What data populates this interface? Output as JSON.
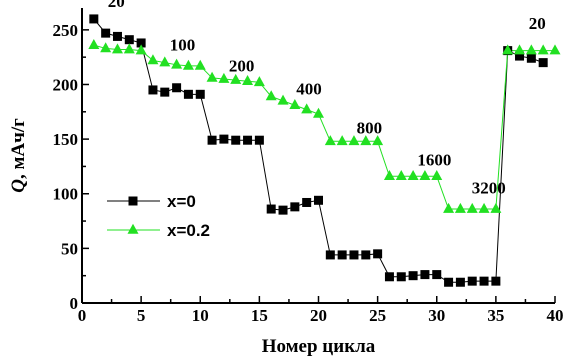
{
  "chart_data": {
    "type": "scatter",
    "xlabel": "Номер цикла",
    "ylabel_symbol": "Q",
    "ylabel_rest": ", мАч/г",
    "xlim": [
      0,
      40
    ],
    "ylim": [
      0,
      270
    ],
    "x_ticks": [
      0,
      5,
      10,
      15,
      20,
      25,
      30,
      35,
      40
    ],
    "y_ticks": [
      0,
      50,
      100,
      150,
      200,
      250
    ],
    "grid": false,
    "legend_position": "middle-left",
    "series": [
      {
        "name": "x=0",
        "marker": "square",
        "color": "#000000",
        "x": [
          1,
          2,
          3,
          4,
          5,
          6,
          7,
          8,
          9,
          10,
          11,
          12,
          13,
          14,
          15,
          16,
          17,
          18,
          19,
          20,
          21,
          22,
          23,
          24,
          25,
          26,
          27,
          28,
          29,
          30,
          31,
          32,
          33,
          34,
          35,
          36,
          37,
          38,
          39
        ],
        "y": [
          260,
          247,
          244,
          241,
          238,
          195,
          193,
          197,
          191,
          191,
          149,
          150,
          149,
          149,
          149,
          86,
          85,
          88,
          92,
          94,
          44,
          44,
          44,
          44,
          45,
          24,
          24,
          25,
          26,
          26,
          19,
          19,
          20,
          20,
          20,
          231,
          226,
          224,
          220
        ]
      },
      {
        "name": "x=0.2",
        "marker": "triangle",
        "color": "#22e022",
        "x": [
          1,
          2,
          3,
          4,
          5,
          6,
          7,
          8,
          9,
          10,
          11,
          12,
          13,
          14,
          15,
          16,
          17,
          18,
          19,
          20,
          21,
          22,
          23,
          24,
          25,
          26,
          27,
          28,
          29,
          30,
          31,
          32,
          33,
          34,
          35,
          36,
          37,
          38,
          39,
          40
        ],
        "y": [
          236,
          233,
          232,
          232,
          231,
          222,
          220,
          218,
          217,
          217,
          206,
          205,
          204,
          203,
          202,
          189,
          185,
          181,
          177,
          173,
          148,
          148,
          148,
          148,
          148,
          116,
          116,
          116,
          116,
          116,
          86,
          86,
          86,
          86,
          86,
          231,
          231,
          231,
          231,
          231
        ]
      }
    ],
    "annotations": [
      {
        "text": "20",
        "x": 2.9,
        "y": 271
      },
      {
        "text": "100",
        "x": 8.5,
        "y": 231
      },
      {
        "text": "200",
        "x": 13.5,
        "y": 212
      },
      {
        "text": "400",
        "x": 19.2,
        "y": 191
      },
      {
        "text": "800",
        "x": 24.3,
        "y": 155
      },
      {
        "text": "1600",
        "x": 29.8,
        "y": 126
      },
      {
        "text": "3200",
        "x": 34.4,
        "y": 100
      },
      {
        "text": "20",
        "x": 38.5,
        "y": 251
      }
    ]
  }
}
